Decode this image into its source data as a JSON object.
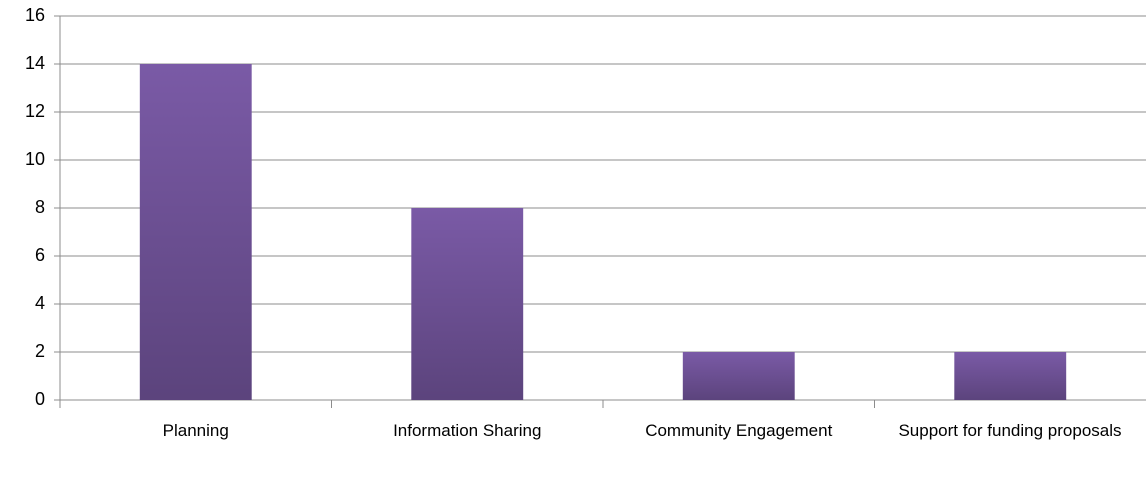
{
  "chart_data": {
    "type": "bar",
    "categories": [
      "Planning",
      "Information Sharing",
      "Community Engagement",
      "Support for funding proposals"
    ],
    "values": [
      14,
      8,
      2,
      2
    ],
    "color": "#7a5aa6",
    "ylim": [
      0,
      16
    ],
    "yticks": [
      0,
      2,
      4,
      6,
      8,
      10,
      12,
      14,
      16
    ],
    "grid": true
  }
}
